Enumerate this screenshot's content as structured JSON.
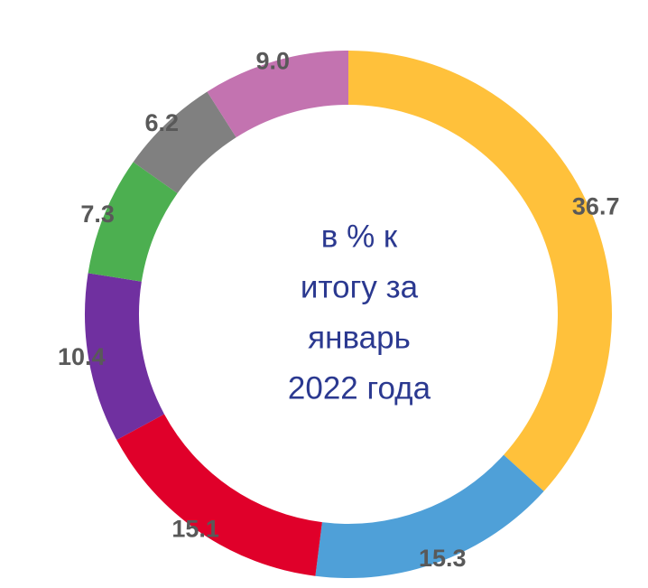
{
  "chart_data": {
    "type": "donut",
    "center_text": [
      "в % к",
      "итогу за",
      "январь",
      "2022 года"
    ],
    "series": [
      {
        "values": [
          36.7,
          15.3,
          15.1,
          10.4,
          7.3,
          6.2,
          9.0
        ],
        "value_labels": [
          "36.7",
          "15.3",
          "15.1",
          "10.4",
          "7.3",
          "6.2",
          "9.0"
        ],
        "colors": [
          "#FFC13B",
          "#4FA0D8",
          "#E0002A",
          "#7030A0",
          "#4CAF50",
          "#808080",
          "#C373B0"
        ]
      }
    ]
  }
}
